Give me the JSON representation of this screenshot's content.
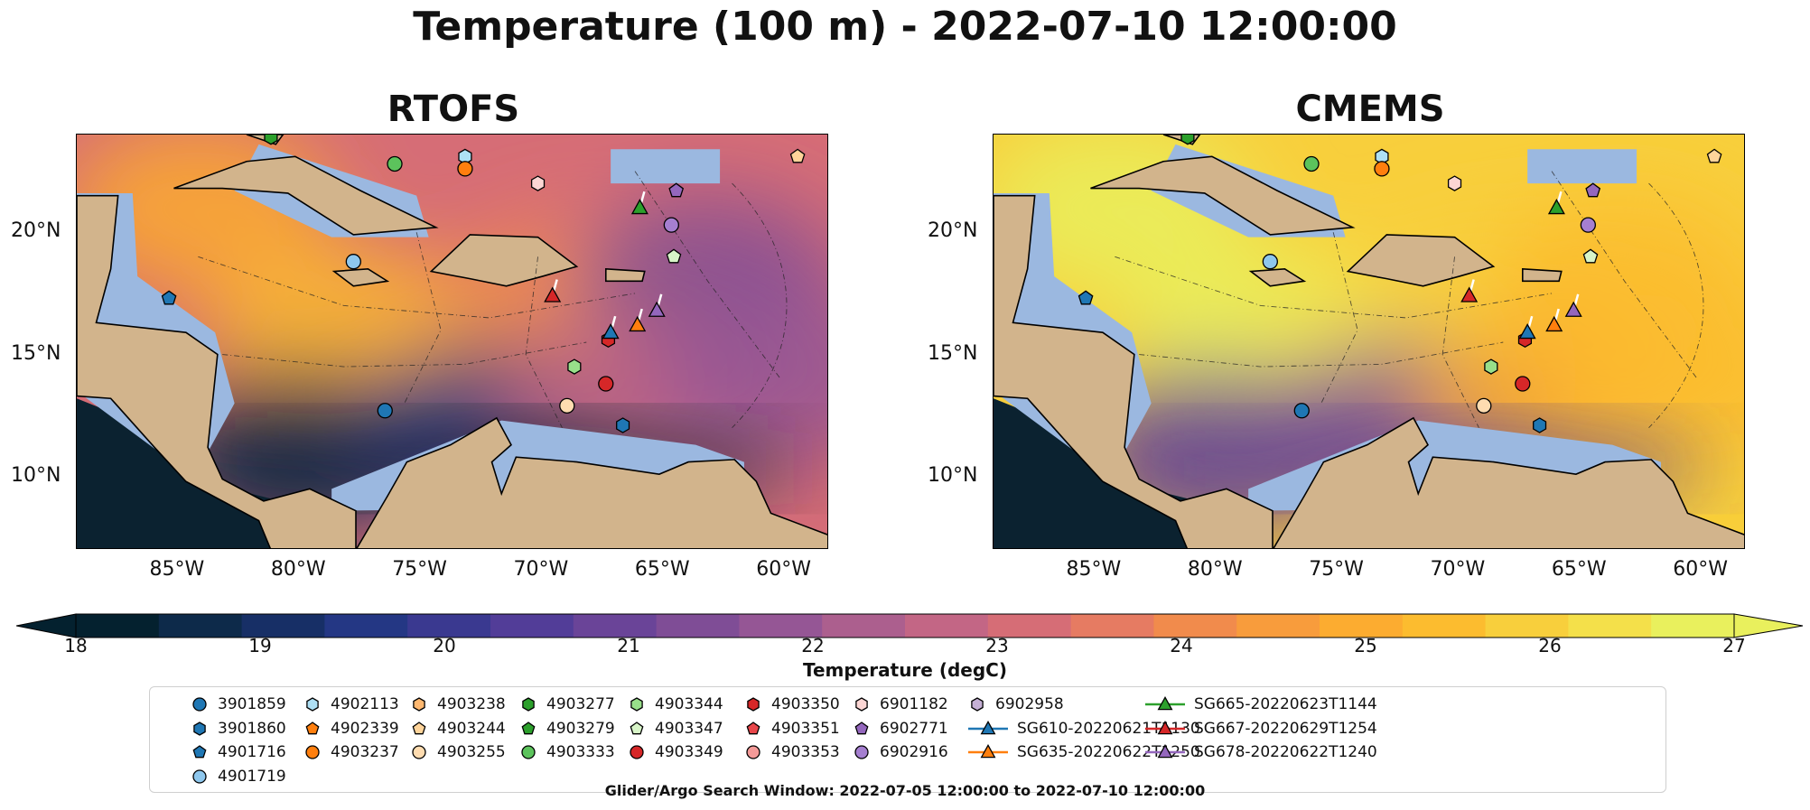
{
  "suptitle": "Temperature (100 m) - 2022-07-10 12:00:00",
  "footer": "Glider/Argo Search Window: 2022-07-05 12:00:00 to 2022-07-10 12:00:00",
  "colorbar_label": "Temperature (degC)",
  "colors": {
    "land": "#d2b48c",
    "shelf": "#9bb8e0",
    "deep": "#0b2230",
    "cmap": [
      "#04212f",
      "#0d2a4a",
      "#172f66",
      "#243784",
      "#3a3990",
      "#523d98",
      "#6a4498",
      "#7f4d96",
      "#955695",
      "#ac5f8e",
      "#c36685",
      "#d66d76",
      "#e67b62",
      "#f18b4c",
      "#f89c3c",
      "#fcac30",
      "#fcbc2f",
      "#f8cf3c",
      "#f4e04a",
      "#e9f05d"
    ]
  },
  "chart_data": [
    {
      "type": "heatmap",
      "title": "RTOFS",
      "xticks": [
        "85°W",
        "80°W",
        "75°W",
        "70°W",
        "65°W",
        "60°W"
      ],
      "yticks": [
        "20°N",
        "15°N",
        "10°N"
      ],
      "xlim": [
        -89,
        -58
      ],
      "ylim": [
        7,
        24
      ],
      "field_range": [
        18,
        27
      ],
      "temperature_samples": [
        {
          "lon": -84,
          "lat": 21,
          "t": 25.0
        },
        {
          "lon": -78,
          "lat": 16,
          "t": 25.3
        },
        {
          "lon": -72,
          "lat": 15,
          "t": 24.8
        },
        {
          "lon": -68,
          "lat": 17,
          "t": 24.2
        },
        {
          "lon": -63,
          "lat": 18,
          "t": 21.5
        },
        {
          "lon": -80,
          "lat": 11,
          "t": 18.5
        },
        {
          "lon": -72,
          "lat": 12,
          "t": 19.5
        },
        {
          "lon": -66,
          "lat": 13,
          "t": 22.5
        },
        {
          "lon": -60,
          "lat": 14,
          "t": 22.0
        }
      ]
    },
    {
      "type": "heatmap",
      "title": "CMEMS",
      "xticks": [
        "85°W",
        "80°W",
        "75°W",
        "70°W",
        "65°W",
        "60°W"
      ],
      "yticks": [
        "20°N",
        "15°N",
        "10°N"
      ],
      "xlim": [
        -89,
        -58
      ],
      "ylim": [
        7,
        24
      ],
      "field_range": [
        18,
        27
      ],
      "temperature_samples": [
        {
          "lon": -84,
          "lat": 21,
          "t": 26.8
        },
        {
          "lon": -78,
          "lat": 16,
          "t": 27.0
        },
        {
          "lon": -72,
          "lat": 15,
          "t": 26.3
        },
        {
          "lon": -68,
          "lat": 17,
          "t": 26.0
        },
        {
          "lon": -63,
          "lat": 18,
          "t": 25.6
        },
        {
          "lon": -80,
          "lat": 11,
          "t": 21.0
        },
        {
          "lon": -72,
          "lat": 12,
          "t": 21.5
        },
        {
          "lon": -66,
          "lat": 13,
          "t": 24.8
        },
        {
          "lon": -60,
          "lat": 14,
          "t": 25.5
        }
      ]
    }
  ],
  "colorbar": {
    "ticks": [
      18,
      19,
      20,
      21,
      22,
      23,
      24,
      25,
      26,
      27
    ],
    "range": [
      18,
      27
    ]
  },
  "legend": [
    {
      "label": "3901859",
      "marker": "circle",
      "color": "#1f77b4"
    },
    {
      "label": "3901860",
      "marker": "hexagon",
      "color": "#1f77b4"
    },
    {
      "label": "4901716",
      "marker": "pentagon",
      "color": "#1f77b4"
    },
    {
      "label": "4901719",
      "marker": "circle",
      "color": "#8ec7ed"
    },
    {
      "label": "4902113",
      "marker": "hexagon",
      "color": "#aee0f5"
    },
    {
      "label": "4902339",
      "marker": "pentagon",
      "color": "#ff7f0e"
    },
    {
      "label": "4903237",
      "marker": "circle",
      "color": "#ff7f0e"
    },
    {
      "label": "4903238",
      "marker": "hexagon",
      "color": "#ffb870"
    },
    {
      "label": "4903244",
      "marker": "pentagon",
      "color": "#ffd49a"
    },
    {
      "label": "4903255",
      "marker": "circle",
      "color": "#ffdcb0"
    },
    {
      "label": "4903277",
      "marker": "hexagon",
      "color": "#2ca02c"
    },
    {
      "label": "4903279",
      "marker": "pentagon",
      "color": "#2ca02c"
    },
    {
      "label": "4903333",
      "marker": "circle",
      "color": "#5cc35c"
    },
    {
      "label": "4903344",
      "marker": "hexagon",
      "color": "#98df8a"
    },
    {
      "label": "4903347",
      "marker": "pentagon",
      "color": "#d8f5c8"
    },
    {
      "label": "4903349",
      "marker": "circle",
      "color": "#d62728"
    },
    {
      "label": "4903350",
      "marker": "hexagon",
      "color": "#d62728"
    },
    {
      "label": "4903351",
      "marker": "pentagon",
      "color": "#e8464a"
    },
    {
      "label": "4903353",
      "marker": "circle",
      "color": "#f49a98"
    },
    {
      "label": "6901182",
      "marker": "hexagon",
      "color": "#fcd6d4"
    },
    {
      "label": "6902771",
      "marker": "pentagon",
      "color": "#9467bd"
    },
    {
      "label": "6902916",
      "marker": "circle",
      "color": "#a57fd0"
    },
    {
      "label": "6902958",
      "marker": "hexagon",
      "color": "#c5b0d5"
    },
    {
      "label": "SG610-20220621T1130",
      "marker": "triangle-line",
      "color": "#1f77b4"
    },
    {
      "label": "SG635-20220622T1250",
      "marker": "triangle-line",
      "color": "#ff7f0e"
    },
    {
      "label": "SG665-20220623T1144",
      "marker": "triangle-line",
      "color": "#2ca02c"
    },
    {
      "label": "SG667-20220629T1254",
      "marker": "triangle-line",
      "color": "#d62728"
    },
    {
      "label": "SG678-20220622T1240",
      "marker": "triangle-line",
      "color": "#9467bd"
    }
  ],
  "markers": [
    {
      "label": "3901859",
      "lon": -76.3,
      "lat": 12.7
    },
    {
      "label": "3901860",
      "lon": -66.5,
      "lat": 12.1
    },
    {
      "label": "4901716",
      "lon": -85.2,
      "lat": 17.3
    },
    {
      "label": "4901719",
      "lon": -77.6,
      "lat": 18.8
    },
    {
      "label": "4902113",
      "lon": -73.0,
      "lat": 23.1
    },
    {
      "label": "4902339",
      "lon": -73.0,
      "lat": 22.6
    },
    {
      "label": "4903237",
      "lon": -73.0,
      "lat": 22.6
    },
    {
      "label": "4903244",
      "lon": -59.3,
      "lat": 23.1
    },
    {
      "label": "4903255",
      "lon": -68.8,
      "lat": 12.9
    },
    {
      "label": "4903277",
      "lon": -81.0,
      "lat": 23.9
    },
    {
      "label": "4903333",
      "lon": -75.9,
      "lat": 22.8
    },
    {
      "label": "4903344",
      "lon": -68.5,
      "lat": 14.5
    },
    {
      "label": "4903347",
      "lon": -64.4,
      "lat": 19.0
    },
    {
      "label": "4903349",
      "lon": -67.2,
      "lat": 13.8
    },
    {
      "label": "4903350",
      "lon": -67.1,
      "lat": 15.6
    },
    {
      "label": "6901182",
      "lon": -70.0,
      "lat": 22.0
    },
    {
      "label": "6902771",
      "lon": -64.3,
      "lat": 21.7
    },
    {
      "label": "6902916",
      "lon": -64.5,
      "lat": 20.3
    },
    {
      "label": "SG610-20220621T1130",
      "lon": -67.0,
      "lat": 15.9
    },
    {
      "label": "SG635-20220622T1250",
      "lon": -65.9,
      "lat": 16.2
    },
    {
      "label": "SG665-20220623T1144",
      "lon": -65.8,
      "lat": 21.0
    },
    {
      "label": "SG667-20220629T1254",
      "lon": -69.4,
      "lat": 17.4
    },
    {
      "label": "SG678-20220622T1240",
      "lon": -65.1,
      "lat": 16.8
    }
  ]
}
